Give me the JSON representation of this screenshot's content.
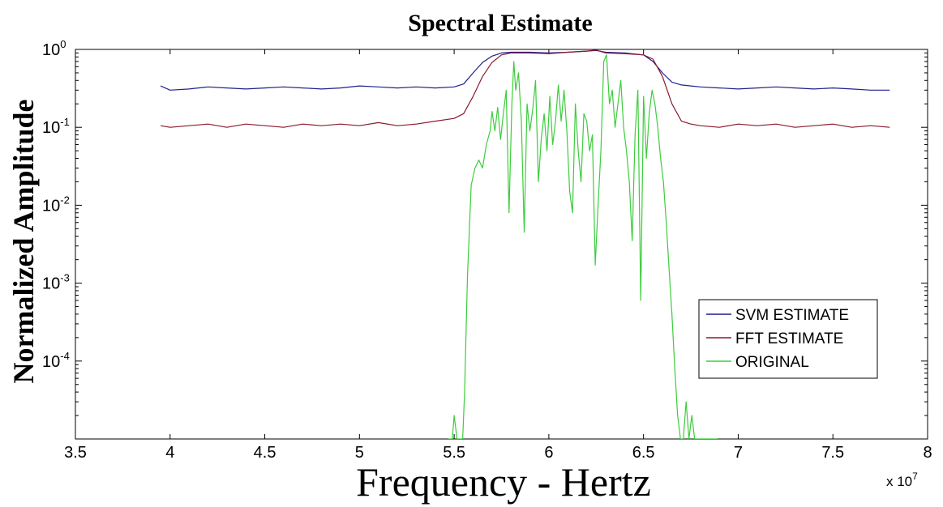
{
  "chart_data": {
    "type": "line",
    "title": "Spectral Estimate",
    "xlabel": "Frequency - Hertz",
    "ylabel": "Normalized Amplitude",
    "x_exponent_label": "x 10",
    "x_exponent_power": "7",
    "xlim": [
      35000000,
      80000000
    ],
    "ylim": [
      1e-05,
      1
    ],
    "yscale": "log",
    "grid": false,
    "legend_position": "lower-right",
    "x_ticks": [
      {
        "value": 35000000,
        "label": "3.5"
      },
      {
        "value": 40000000,
        "label": "4"
      },
      {
        "value": 45000000,
        "label": "4.5"
      },
      {
        "value": 50000000,
        "label": "5"
      },
      {
        "value": 55000000,
        "label": "5.5"
      },
      {
        "value": 60000000,
        "label": "6"
      },
      {
        "value": 65000000,
        "label": "6.5"
      },
      {
        "value": 70000000,
        "label": "7"
      },
      {
        "value": 75000000,
        "label": "7.5"
      },
      {
        "value": 80000000,
        "label": "8"
      }
    ],
    "y_ticks": [
      {
        "value": 1,
        "base": "10",
        "exp": "0"
      },
      {
        "value": 0.1,
        "base": "10",
        "exp": "-1"
      },
      {
        "value": 0.01,
        "base": "10",
        "exp": "-2"
      },
      {
        "value": 0.001,
        "base": "10",
        "exp": "-3"
      },
      {
        "value": 0.0001,
        "base": "10",
        "exp": "-4"
      }
    ],
    "series": [
      {
        "name": "SVM ESTIMATE",
        "color": "#1f1f8f",
        "x": [
          39500000,
          40000000,
          41000000,
          42000000,
          43000000,
          44000000,
          45000000,
          46000000,
          47000000,
          48000000,
          49000000,
          50000000,
          51000000,
          52000000,
          53000000,
          54000000,
          55000000,
          55500000,
          56000000,
          56500000,
          57000000,
          57500000,
          58000000,
          59000000,
          60000000,
          61000000,
          62000000,
          62500000,
          63000000,
          64000000,
          65000000,
          65500000,
          66000000,
          66500000,
          67000000,
          67500000,
          68000000,
          69000000,
          70000000,
          71000000,
          72000000,
          73000000,
          74000000,
          75000000,
          76000000,
          77000000,
          78000000
        ],
        "values": [
          0.34,
          0.3,
          0.31,
          0.33,
          0.32,
          0.31,
          0.32,
          0.33,
          0.32,
          0.31,
          0.32,
          0.34,
          0.33,
          0.32,
          0.33,
          0.32,
          0.33,
          0.36,
          0.5,
          0.68,
          0.82,
          0.9,
          0.92,
          0.92,
          0.9,
          0.92,
          0.95,
          0.97,
          0.92,
          0.9,
          0.85,
          0.7,
          0.5,
          0.38,
          0.35,
          0.34,
          0.33,
          0.32,
          0.31,
          0.32,
          0.33,
          0.32,
          0.31,
          0.32,
          0.31,
          0.3,
          0.3
        ]
      },
      {
        "name": "FFT ESTIMATE",
        "color": "#8b1a2f",
        "x": [
          39500000,
          40000000,
          41000000,
          42000000,
          43000000,
          44000000,
          45000000,
          46000000,
          47000000,
          48000000,
          49000000,
          50000000,
          51000000,
          52000000,
          53000000,
          54000000,
          55000000,
          55500000,
          56000000,
          56500000,
          57000000,
          57500000,
          58000000,
          59000000,
          60000000,
          61000000,
          62000000,
          62500000,
          63000000,
          64000000,
          65000000,
          65500000,
          66000000,
          66500000,
          67000000,
          67500000,
          68000000,
          69000000,
          70000000,
          71000000,
          72000000,
          73000000,
          74000000,
          75000000,
          76000000,
          77000000,
          78000000
        ],
        "values": [
          0.105,
          0.1,
          0.105,
          0.11,
          0.1,
          0.11,
          0.105,
          0.1,
          0.11,
          0.105,
          0.11,
          0.105,
          0.115,
          0.105,
          0.11,
          0.12,
          0.13,
          0.15,
          0.25,
          0.45,
          0.68,
          0.85,
          0.9,
          0.9,
          0.88,
          0.92,
          0.95,
          0.98,
          0.9,
          0.88,
          0.85,
          0.75,
          0.45,
          0.2,
          0.12,
          0.11,
          0.105,
          0.1,
          0.11,
          0.105,
          0.11,
          0.1,
          0.105,
          0.11,
          0.1,
          0.105,
          0.1
        ]
      },
      {
        "name": "ORIGINAL",
        "color": "#3dcc3d",
        "x": [
          54700000,
          54900000,
          55000000,
          55150000,
          55300000,
          55450000,
          55550000,
          55700000,
          55900000,
          56100000,
          56300000,
          56500000,
          56700000,
          56900000,
          57000000,
          57150000,
          57300000,
          57450000,
          57600000,
          57750000,
          57900000,
          58050000,
          58150000,
          58250000,
          58400000,
          58550000,
          58700000,
          58850000,
          59000000,
          59150000,
          59300000,
          59450000,
          59600000,
          59750000,
          59900000,
          60050000,
          60200000,
          60350000,
          60500000,
          60650000,
          60800000,
          60950000,
          61100000,
          61250000,
          61400000,
          61550000,
          61700000,
          61850000,
          62000000,
          62150000,
          62300000,
          62450000,
          62600000,
          62750000,
          62900000,
          63050000,
          63200000,
          63350000,
          63500000,
          63650000,
          63800000,
          63950000,
          64100000,
          64250000,
          64400000,
          64550000,
          64700000,
          64850000,
          65000000,
          65150000,
          65300000,
          65450000,
          65600000,
          65750000,
          65900000,
          66050000,
          66200000,
          66350000,
          66500000,
          66650000,
          66800000,
          66950000,
          67100000,
          67250000,
          67400000,
          67550000,
          67700000,
          67850000,
          68000000,
          68150000,
          68300000,
          68450000,
          68600000,
          68750000,
          68900000
        ],
        "values": [
          1e-05,
          1e-05,
          2e-05,
          1e-05,
          1e-05,
          1e-05,
          4e-05,
          0.0012,
          0.018,
          0.03,
          0.038,
          0.03,
          0.06,
          0.09,
          0.16,
          0.09,
          0.18,
          0.07,
          0.15,
          0.3,
          0.008,
          0.2,
          0.7,
          0.3,
          0.5,
          0.12,
          0.0045,
          0.2,
          0.09,
          0.17,
          0.4,
          0.02,
          0.07,
          0.15,
          0.05,
          0.25,
          0.06,
          0.12,
          0.35,
          0.12,
          0.3,
          0.09,
          0.015,
          0.008,
          0.2,
          0.05,
          0.02,
          0.15,
          0.12,
          0.05,
          0.08,
          0.0017,
          0.01,
          0.05,
          0.7,
          0.85,
          0.2,
          0.3,
          0.1,
          0.2,
          0.4,
          0.1,
          0.05,
          0.02,
          0.0035,
          0.08,
          0.3,
          0.0006,
          0.25,
          0.04,
          0.15,
          0.3,
          0.2,
          0.1,
          0.04,
          0.02,
          0.006,
          0.0015,
          0.0004,
          8e-05,
          2e-05,
          1e-05,
          1e-05,
          3e-05,
          1e-05,
          2e-05,
          1e-05,
          1e-05,
          1e-05,
          1e-05,
          1e-05,
          1e-05,
          1e-05,
          1e-05,
          1e-05
        ]
      }
    ]
  }
}
